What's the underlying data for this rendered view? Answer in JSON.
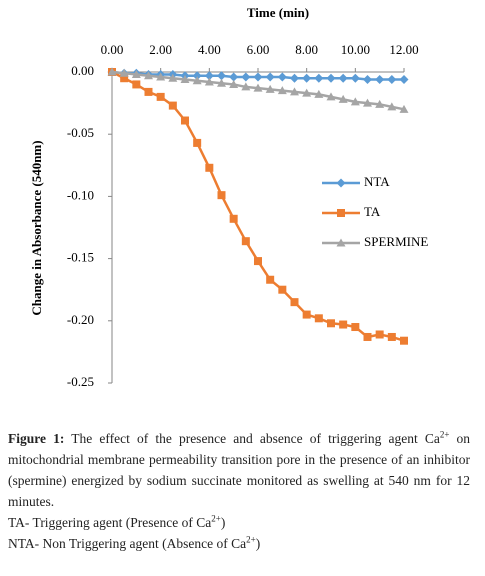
{
  "chart_data": {
    "type": "line",
    "title": "Time (min)",
    "y_label": "Change in Absorbance (540nm)",
    "x": [
      0,
      0.5,
      1,
      1.5,
      2,
      2.5,
      3,
      3.5,
      4,
      4.5,
      5,
      5.5,
      6,
      6.5,
      7,
      7.5,
      8,
      8.5,
      9,
      9.5,
      10,
      10.5,
      11,
      11.5,
      12
    ],
    "xlim": [
      0,
      12
    ],
    "xticks": [
      {
        "value": 0,
        "label": "0.00"
      },
      {
        "value": 2,
        "label": "2.00"
      },
      {
        "value": 4,
        "label": "4.00"
      },
      {
        "value": 6,
        "label": "6.00"
      },
      {
        "value": 8,
        "label": "8.00"
      },
      {
        "value": 10,
        "label": "10.00"
      },
      {
        "value": 12,
        "label": "12.00"
      }
    ],
    "ylim": [
      -0.25,
      0
    ],
    "yticks": [
      {
        "value": 0,
        "label": "0.00"
      },
      {
        "value": -0.05,
        "label": "-0.05"
      },
      {
        "value": -0.1,
        "label": "-0.10"
      },
      {
        "value": -0.15,
        "label": "-0.15"
      },
      {
        "value": -0.2,
        "label": "-0.20"
      },
      {
        "value": -0.25,
        "label": "-0.25"
      }
    ],
    "legend": "right",
    "series": [
      {
        "name": "NTA",
        "color": "#5b9bd5",
        "marker": "diamond",
        "values": [
          0,
          -0.001,
          -0.001,
          -0.002,
          -0.002,
          -0.002,
          -0.003,
          -0.003,
          -0.003,
          -0.003,
          -0.004,
          -0.004,
          -0.004,
          -0.004,
          -0.004,
          -0.005,
          -0.005,
          -0.005,
          -0.005,
          -0.005,
          -0.005,
          -0.006,
          -0.006,
          -0.006,
          -0.006
        ]
      },
      {
        "name": "TA",
        "color": "#ed7d31",
        "marker": "square",
        "values": [
          0,
          -0.005,
          -0.01,
          -0.016,
          -0.02,
          -0.027,
          -0.039,
          -0.057,
          -0.077,
          -0.099,
          -0.118,
          -0.136,
          -0.152,
          -0.167,
          -0.175,
          -0.185,
          -0.195,
          -0.198,
          -0.202,
          -0.203,
          -0.205,
          -0.213,
          -0.211,
          -0.213,
          -0.216
        ]
      },
      {
        "name": "SPERMINE",
        "color": "#a5a5a5",
        "marker": "triangle",
        "values": [
          0,
          -0.001,
          -0.002,
          -0.003,
          -0.004,
          -0.005,
          -0.006,
          -0.007,
          -0.008,
          -0.009,
          -0.01,
          -0.012,
          -0.013,
          -0.014,
          -0.015,
          -0.016,
          -0.017,
          -0.018,
          -0.02,
          -0.022,
          -0.024,
          -0.025,
          -0.026,
          -0.028,
          -0.03
        ]
      }
    ]
  },
  "caption": {
    "label": "Figure 1:",
    "parts": [
      "The effect of the presence and absence of triggering agent Ca",
      "2+",
      " on mitochondrial membrane permeability transition pore in the presence of an inhibitor (spermine) energized by sodium succinate monitored as swelling at 540 nm for 12 minutes."
    ]
  },
  "notes": [
    {
      "parts": [
        "TA- Triggering agent (Presence of Ca",
        "2+",
        ")"
      ]
    },
    {
      "parts": [
        "NTA- Non Triggering agent (Absence of Ca",
        "2+",
        ")"
      ]
    }
  ]
}
